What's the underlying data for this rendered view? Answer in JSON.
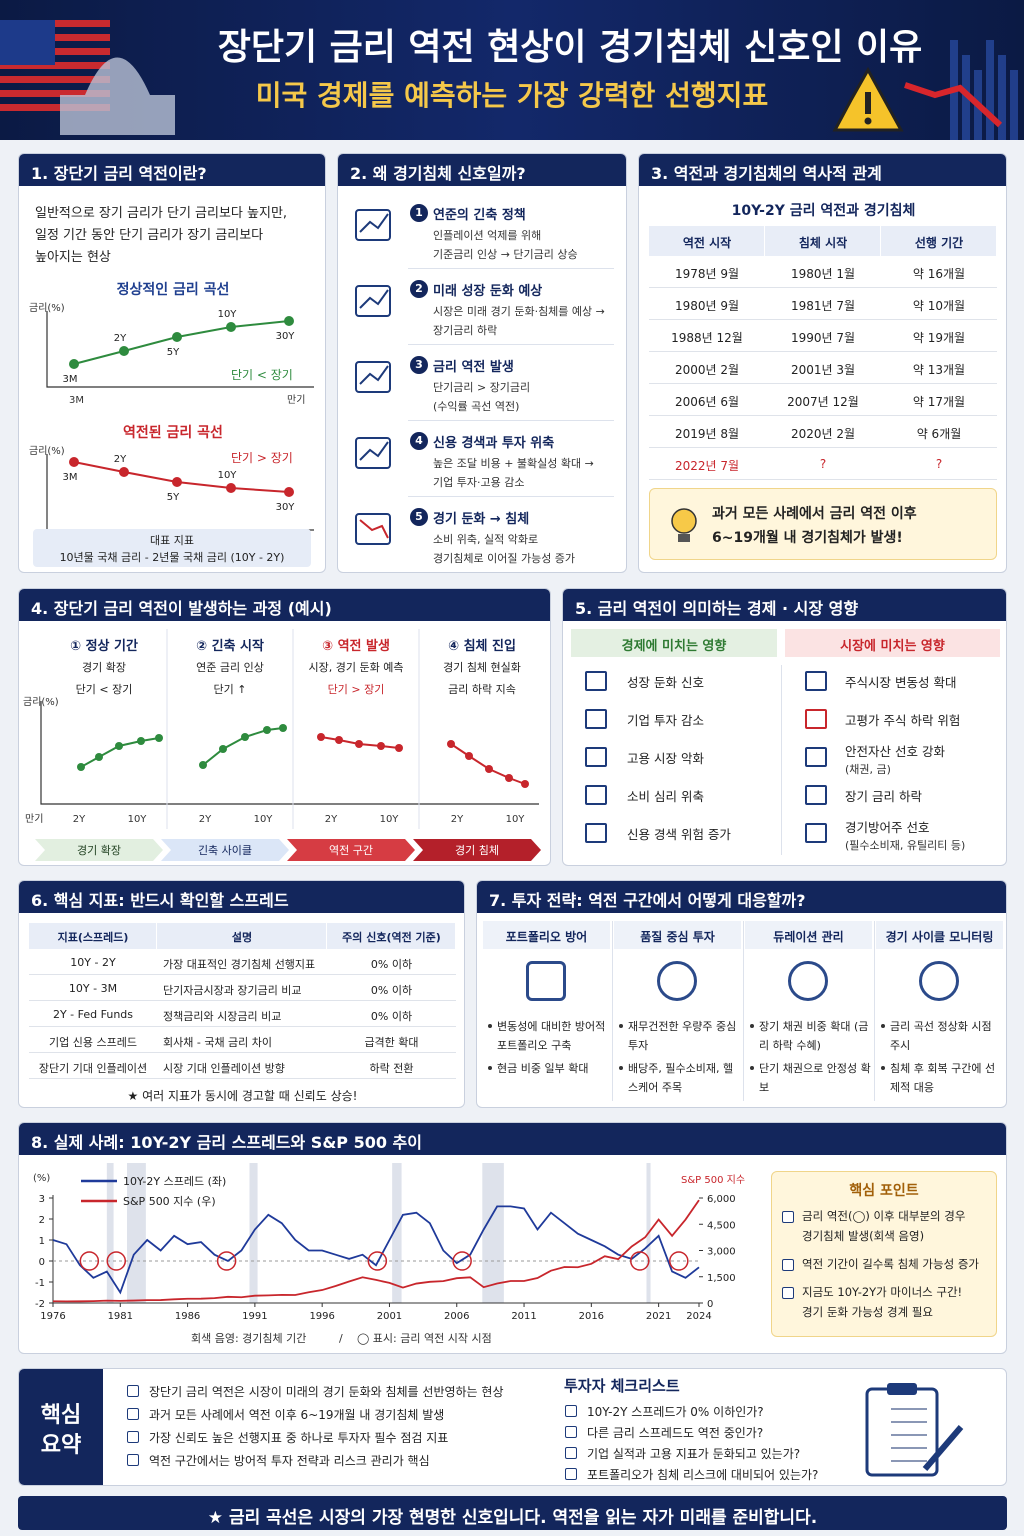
{
  "header": {
    "title": "장단기 금리 역전 현상이 경기침체 신호인 이유",
    "subtitle": "미국 경제를 예측하는 가장 강력한 선행지표"
  },
  "s1": {
    "heading": "1. 장단기 금리 역전이란?",
    "text": [
      "일반적으로 장기 금리가 단기 금리보다 높지만,",
      "일정 기간 동안 단기 금리가 장기 금리보다",
      "높아지는 현상"
    ],
    "normal": {
      "title": "정상적인 금리 곡선",
      "ylabel": "금리(%)",
      "labels": [
        "3M",
        "2Y",
        "5Y",
        "10Y",
        "30Y"
      ],
      "axis": [
        "3M",
        "만기"
      ],
      "note": "단기 < 장기"
    },
    "inverted": {
      "title": "역전된 금리 곡선",
      "ylabel": "금리(%)",
      "labels": [
        "3M",
        "2Y",
        "5Y",
        "10Y",
        "30Y"
      ],
      "note": "단기 > 장기"
    },
    "indicator": [
      "대표 지표",
      "10년물 국채 금리 - 2년물 국채 금리 (10Y - 2Y)"
    ]
  },
  "s2": {
    "heading": "2. 왜 경기침체 신호일까?",
    "items": [
      {
        "num": "1",
        "title": "연준의 긴축 정책",
        "lines": [
          "인플레이션 억제를 위해",
          "기준금리 인상 → 단기금리 상승"
        ]
      },
      {
        "num": "2",
        "title": "미래 성장 둔화 예상",
        "lines": [
          "시장은 미래 경기 둔화·침체를 예상 →",
          "장기금리 하락"
        ]
      },
      {
        "num": "3",
        "title": "금리 역전 발생",
        "lines": [
          "단기금리 > 장기금리",
          "(수익률 곡선 역전)"
        ]
      },
      {
        "num": "4",
        "title": "신용 경색과 투자 위축",
        "lines": [
          "높은 조달 비용 + 불확실성 확대 →",
          "기업 투자·고용 감소"
        ]
      },
      {
        "num": "5",
        "title": "경기 둔화 → 침체",
        "lines": [
          "소비 위축, 실적 악화로",
          "경기침체로 이어질 가능성 증가"
        ]
      }
    ]
  },
  "s3": {
    "heading": "3. 역전과 경기침체의 역사적 관계",
    "subtitle": "10Y-2Y 금리 역전과 경기침체",
    "columns": [
      "역전 시작",
      "침체 시작",
      "선행 기간"
    ],
    "rows": [
      [
        "1978년 9월",
        "1980년 1월",
        "약 16개월"
      ],
      [
        "1980년 9월",
        "1981년 7월",
        "약 10개월"
      ],
      [
        "1988년 12월",
        "1990년 7월",
        "약 19개월"
      ],
      [
        "2000년 2월",
        "2001년 3월",
        "약 13개월"
      ],
      [
        "2006년 6월",
        "2007년 12월",
        "약 17개월"
      ],
      [
        "2019년 8월",
        "2020년 2월",
        "약 6개월"
      ],
      [
        "2022년 7월",
        "?",
        "?"
      ]
    ],
    "callout": [
      "과거 모든 사례에서 금리 역전 이후",
      "6~19개월 내 경기침체가 발생!"
    ]
  },
  "s4": {
    "heading": "4. 장단기 금리 역전이 발생하는 과정 (예시)",
    "stages": [
      {
        "title": "① 정상 기간",
        "lines": [
          "경기 확장",
          "단기 < 장기"
        ]
      },
      {
        "title": "② 긴축 시작",
        "lines": [
          "연준 금리 인상",
          "단기 ↑"
        ]
      },
      {
        "title": "③ 역전 발생",
        "lines": [
          "시장, 경기 둔화 예측",
          "단기 > 장기"
        ]
      },
      {
        "title": "④ 침체 진입",
        "lines": [
          "경기 침체 현실화",
          "금리 하락 지속"
        ]
      }
    ],
    "ylabel": "금리(%)",
    "axis_start": "만기",
    "tenors": [
      "2Y",
      "10Y"
    ],
    "phases": [
      "경기 확장",
      "긴축 사이클",
      "역전 구간",
      "경기 침체"
    ]
  },
  "s5": {
    "heading": "5. 금리 역전이 의미하는 경제 · 시장 영향",
    "economy": {
      "title": "경제에 미치는 영향",
      "items": [
        "성장 둔화 신호",
        "기업 투자 감소",
        "고용 시장 악화",
        "소비 심리 위축",
        "신용 경색 위험 증가"
      ]
    },
    "market": {
      "title": "시장에 미치는 영향",
      "items": [
        {
          "text": "주식시장 변동성 확대"
        },
        {
          "text": "고평가 주식 하락 위험"
        },
        {
          "text": "안전자산 선호 강화",
          "sub": "(채권, 금)"
        },
        {
          "text": "장기 금리 하락"
        },
        {
          "text": "경기방어주 선호",
          "sub": "(필수소비재, 유틸리티 등)"
        }
      ]
    }
  },
  "s6": {
    "heading": "6. 핵심 지표: 반드시 확인할 스프레드",
    "columns": [
      "지표(스프레드)",
      "설명",
      "주의 신호(역전 기준)"
    ],
    "rows": [
      [
        "10Y - 2Y",
        "가장 대표적인 경기침체 선행지표",
        "0% 이하"
      ],
      [
        "10Y - 3M",
        "단기자금시장과 장기금리 비교",
        "0% 이하"
      ],
      [
        "2Y - Fed Funds",
        "정책금리와 시장금리 비교",
        "0% 이하"
      ],
      [
        "기업 신용 스프레드",
        "회사채 - 국채 금리 차이",
        "급격한 확대"
      ],
      [
        "장단기 기대 인플레이션",
        "시장 기대 인플레이션 방향",
        "하락 전환"
      ]
    ],
    "note": "★ 여러 지표가 동시에 경고할 때 신뢰도 상승!"
  },
  "s7": {
    "heading": "7. 투자 전략: 역전 구간에서 어떻게 대응할까?",
    "cols": [
      {
        "title": "포트폴리오 방어",
        "bullets": [
          "변동성에 대비한 방어적 포트폴리오 구축",
          "현금 비중 일부 확대"
        ]
      },
      {
        "title": "품질 중심 투자",
        "bullets": [
          "재무건전한 우량주 중심 투자",
          "배당주, 필수소비재, 헬스케어 주목"
        ]
      },
      {
        "title": "듀레이션 관리",
        "bullets": [
          "장기 채권 비중 확대 (금리 하락 수혜)",
          "단기 채권으로 안정성 확보"
        ]
      },
      {
        "title": "경기 사이클 모니터링",
        "bullets": [
          "금리 곡선 정상화 시점 주시",
          "침체 후 회복 구간에 선제적 대응"
        ]
      }
    ]
  },
  "s8": {
    "heading": "8. 실제 사례: 10Y-2Y 금리 스프레드와 S&P 500 추이",
    "chart": {
      "type": "line",
      "y_label": "(%)",
      "y2_label": "S&P 500 지수",
      "xlim": [
        1976,
        2024
      ],
      "xticks": [
        1976,
        1981,
        1986,
        1991,
        1996,
        2001,
        2006,
        2011,
        2016,
        2021,
        2024
      ],
      "ylim": [
        -2,
        3
      ],
      "yticks": [
        -2,
        -1,
        0,
        1,
        2,
        3
      ],
      "y2lim": [
        0,
        6000
      ],
      "y2ticks": [
        0,
        {
          "value": 1500,
          "label": "1,500"
        },
        {
          "value": 3000,
          "label": "3,000"
        },
        {
          "value": 4500,
          "label": "4,500"
        },
        {
          "value": 6000,
          "label": "6,000"
        }
      ],
      "x": [
        1976,
        1977,
        1978,
        1979,
        1980,
        1981,
        1982,
        1983,
        1984,
        1985,
        1986,
        1987,
        1988,
        1989,
        1990,
        1991,
        1992,
        1993,
        1994,
        1995,
        1996,
        1997,
        1998,
        1999,
        2000,
        2001,
        2002,
        2003,
        2004,
        2005,
        2006,
        2007,
        2008,
        2009,
        2010,
        2011,
        2012,
        2013,
        2014,
        2015,
        2016,
        2017,
        2018,
        2019,
        2020,
        2021,
        2022,
        2023,
        2024
      ],
      "series": [
        {
          "name": "10Y-2Y 스프레드 (좌)",
          "color": "#1f3a9a",
          "values": [
            1.0,
            0.8,
            -0.2,
            -0.8,
            -0.5,
            -1.5,
            0.3,
            1.0,
            0.5,
            1.2,
            0.8,
            0.9,
            0.3,
            0.0,
            0.5,
            1.5,
            2.2,
            1.8,
            1.0,
            0.5,
            0.5,
            0.3,
            0.1,
            0.3,
            -0.2,
            1.0,
            2.2,
            2.3,
            1.8,
            0.5,
            -0.1,
            0.3,
            1.5,
            2.6,
            2.6,
            2.5,
            1.5,
            2.3,
            1.8,
            1.3,
            1.0,
            0.7,
            0.3,
            0.1,
            0.6,
            1.2,
            -0.5,
            -0.8,
            -0.3
          ]
        },
        {
          "name": "S&P 500 지수 (우)",
          "color": "#c8262c",
          "axis": "y2",
          "values": [
            100,
            95,
            96,
            107,
            135,
            122,
            140,
            164,
            167,
            211,
            242,
            247,
            277,
            353,
            330,
            417,
            435,
            466,
            459,
            615,
            740,
            970,
            1229,
            1469,
            1320,
            1148,
            880,
            1111,
            1211,
            1248,
            1418,
            1468,
            903,
            1115,
            1257,
            1257,
            1426,
            1848,
            2058,
            2043,
            2238,
            2673,
            2506,
            3230,
            3756,
            4766,
            3839,
            4769,
            5881
          ]
        }
      ],
      "recessions": [
        [
          1980,
          1980.5
        ],
        [
          1981.5,
          1982.9
        ],
        [
          1990.6,
          1991.2
        ],
        [
          2001.2,
          2001.9
        ],
        [
          2007.9,
          2009.5
        ],
        [
          2020.1,
          2020.4
        ]
      ],
      "inversion_starts": [
        1978.7,
        1980.7,
        1988.9,
        2000.1,
        2006.4,
        2019.6,
        2022.5
      ],
      "caption": [
        "회색 음영: 경기침체 기간",
        "/",
        "◯ 표시: 금리 역전 시작 시점"
      ]
    },
    "keypoints": {
      "title": "핵심 포인트",
      "items": [
        [
          "금리 역전(◯) 이후 대부분의 경우",
          "경기침체 발생(회색 음영)"
        ],
        [
          "역전 기간이 길수록 침체 가능성 증가"
        ],
        [
          "지금도 10Y-2Y가 마이너스 구간!",
          "경기 둔화 가능성 경계 필요"
        ]
      ]
    }
  },
  "summary": {
    "label": [
      "핵심",
      "요약"
    ],
    "items": [
      "장단기 금리 역전은 시장이 미래의 경기 둔화와 침체를 선반영하는 현상",
      "과거 모든 사례에서 역전 이후 6~19개월 내 경기침체 발생",
      "가장 신뢰도 높은 선행지표 중 하나로 투자자 필수 점검 지표",
      "역전 구간에서는 방어적 투자 전략과 리스크 관리가 핵심"
    ],
    "checklist": {
      "title": "투자자 체크리스트",
      "items": [
        "10Y-2Y 스프레드가 0% 이하인가?",
        "다른 금리 스프레드도 역전 중인가?",
        "기업 실적과 고용 지표가 둔화되고 있는가?",
        "포트폴리오가 침체 리스크에 대비되어 있는가?"
      ]
    }
  },
  "footer": "★ 금리 곡선은 시장의 가장 현명한 신호입니다.  역전을 읽는 자가 미래를 준비합니다."
}
